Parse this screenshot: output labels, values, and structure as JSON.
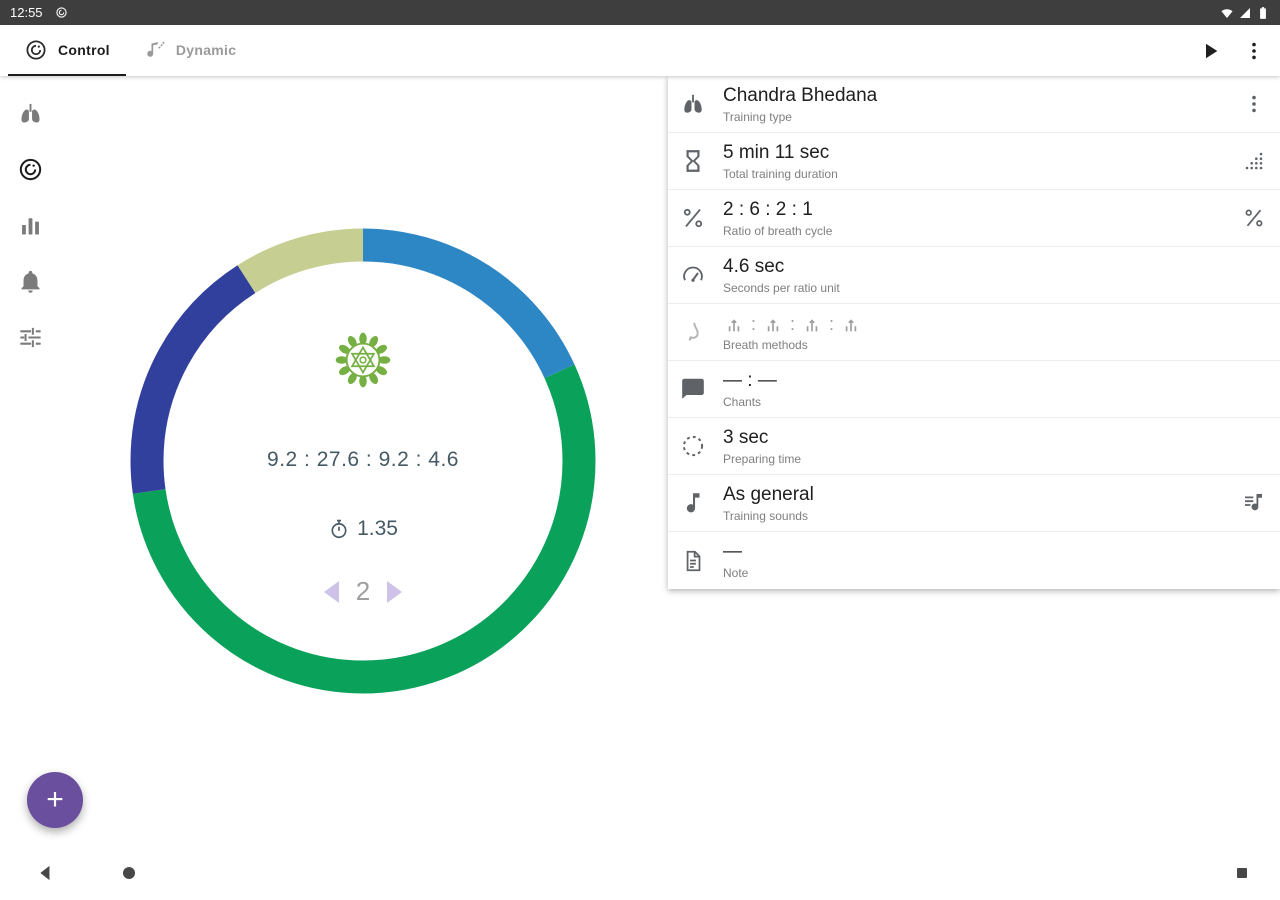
{
  "status_bar": {
    "time": "12:55"
  },
  "toolbar": {
    "tabs": [
      {
        "label": "Control",
        "active": true
      },
      {
        "label": "Dynamic",
        "active": false
      }
    ]
  },
  "sidebar": {
    "items": [
      {
        "id": "lungs",
        "icon": "lungs",
        "active": false
      },
      {
        "id": "control",
        "icon": "app-logo",
        "active": true
      },
      {
        "id": "chart",
        "icon": "chart",
        "active": false
      },
      {
        "id": "bell",
        "icon": "bell",
        "active": false
      },
      {
        "id": "tune",
        "icon": "tune",
        "active": false
      }
    ]
  },
  "chart_data": {
    "type": "pie",
    "subtype": "donut",
    "values": [
      2,
      6,
      2,
      1
    ],
    "seconds": [
      9.2,
      27.6,
      9.2,
      4.6
    ],
    "colors": [
      "#2e87c5",
      "#0aa15a",
      "#32409d",
      "#c6ce92"
    ],
    "start_angle_deg": 0,
    "direction": "clockwise",
    "ratio_label": "2 : 6 : 2 : 1"
  },
  "ring": {
    "ratio_text": "9.2 : 27.6 : 9.2 : 4.6",
    "timer_value": "1.35",
    "cycle_number": "2"
  },
  "details": {
    "rows": [
      {
        "id": "training-type",
        "icon": "lungs",
        "title": "Chandra Bhedana",
        "subtitle": "Training type",
        "right_icon": "more-vert"
      },
      {
        "id": "duration",
        "icon": "hourglass",
        "title": "5 min 11 sec",
        "subtitle": "Total training duration",
        "right_icon": "steps"
      },
      {
        "id": "ratio",
        "icon": "ratio",
        "title": "2 : 6 : 2 : 1",
        "subtitle": "Ratio of breath cycle",
        "right_icon": "ratio"
      },
      {
        "id": "seconds-per-unit",
        "icon": "speed",
        "title": "4.6 sec",
        "subtitle": "Seconds per ratio unit"
      },
      {
        "id": "breath-methods",
        "icon": "nose",
        "glyph_count": 4,
        "separator": " : ",
        "subtitle": "Breath methods",
        "muted": true
      },
      {
        "id": "chants",
        "icon": "chat",
        "title": "— : —",
        "subtitle": "Chants"
      },
      {
        "id": "preparing-time",
        "icon": "prepare",
        "title": "3 sec",
        "subtitle": "Preparing time"
      },
      {
        "id": "training-sounds",
        "icon": "music",
        "title": "As general",
        "subtitle": "Training sounds",
        "right_icon": "sound-list"
      },
      {
        "id": "note",
        "icon": "doc",
        "title": "—",
        "subtitle": "Note"
      }
    ]
  },
  "fab": {
    "glyph": "+"
  },
  "colors": {
    "fab": "#6a4f9f",
    "chakra": "#76b043",
    "center_text": "#455a64",
    "arrow": "#cfc2e8",
    "status_bar_bg": "#3e3e3e"
  }
}
